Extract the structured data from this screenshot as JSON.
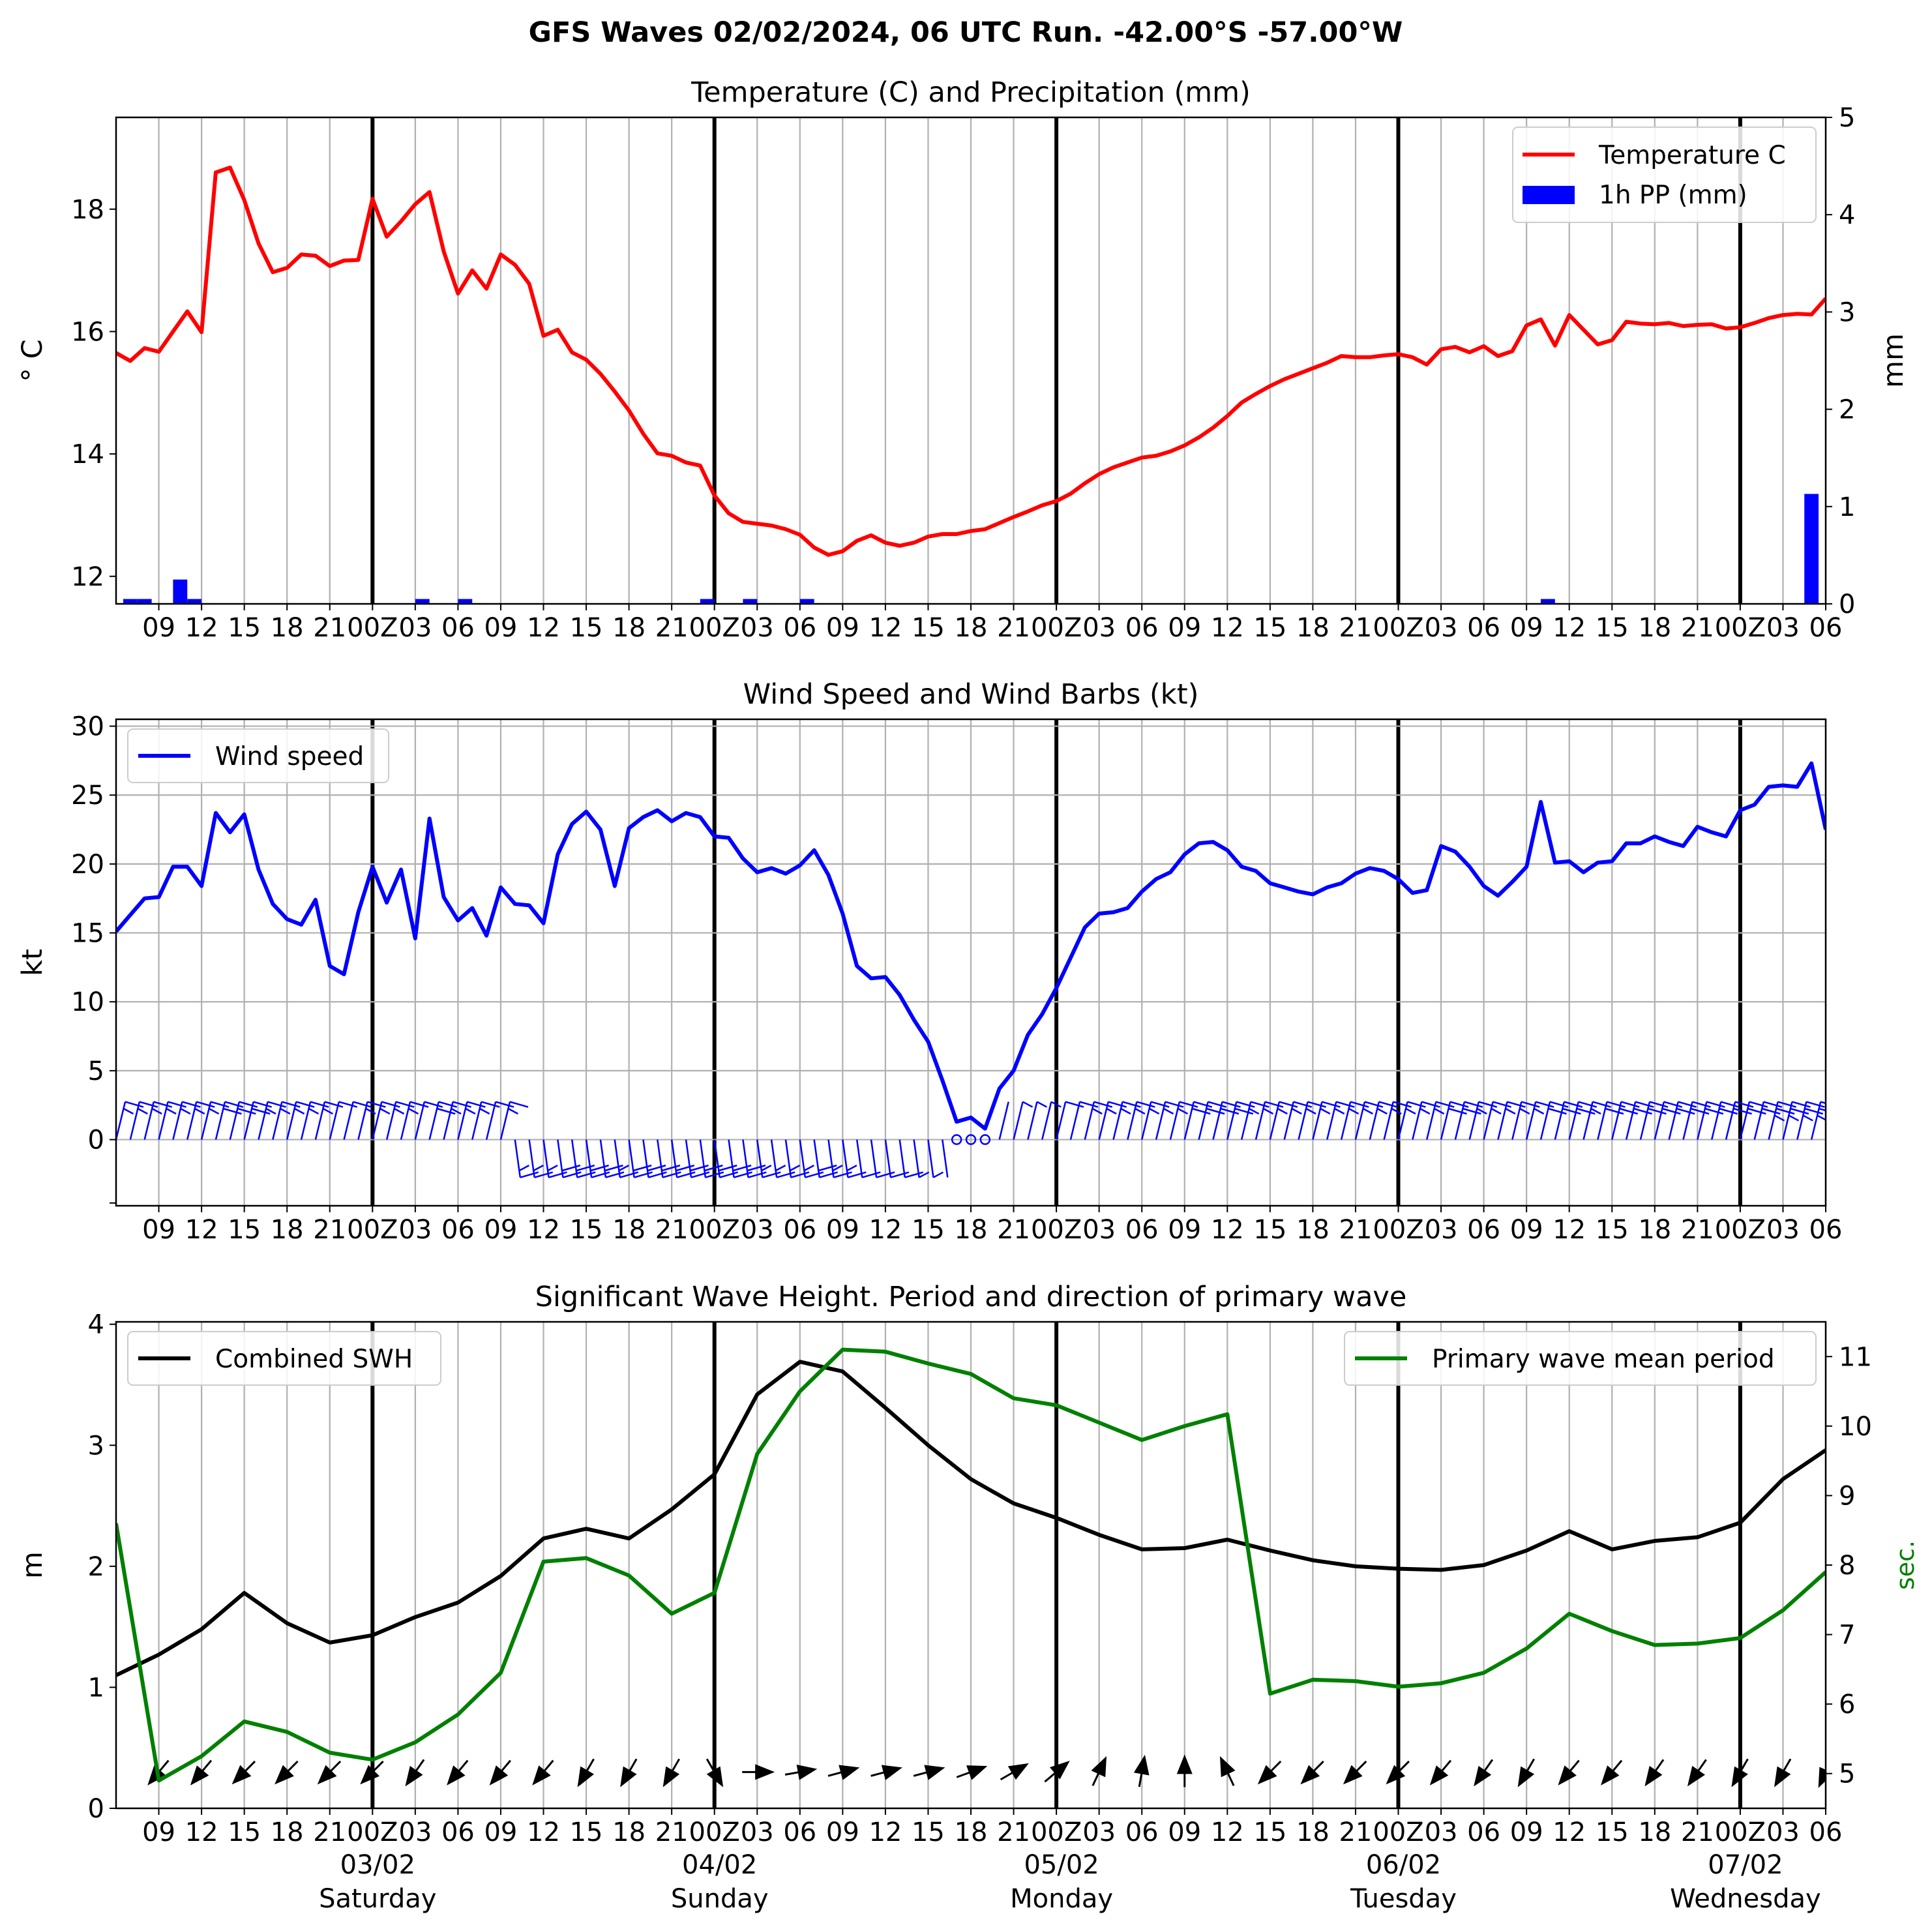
{
  "figure_title": "GFS Waves 02/02/2024, 06 UTC Run. -42.00°S -57.00°W",
  "colors": {
    "temperature": "#ff0000",
    "precipitation": "#0000ff",
    "wind": "#0000ff",
    "swh": "#000000",
    "period": "#008000",
    "wave_arrow": "#000000",
    "grid": "#b0b0b0"
  },
  "hour_ticks": [
    "09",
    "12",
    "15",
    "18",
    "21",
    "00Z",
    "03",
    "06",
    "09",
    "12",
    "15",
    "18",
    "21",
    "00Z",
    "03",
    "06",
    "09",
    "12",
    "15",
    "18",
    "21",
    "00Z",
    "03",
    "06",
    "09",
    "12",
    "15",
    "18",
    "21",
    "00Z",
    "03",
    "06",
    "09",
    "12",
    "15",
    "18",
    "21",
    "00Z",
    "03",
    "06"
  ],
  "day_labels": [
    {
      "date": "03/02",
      "weekday": "Saturday"
    },
    {
      "date": "04/02",
      "weekday": "Sunday"
    },
    {
      "date": "05/02",
      "weekday": "Monday"
    },
    {
      "date": "06/02",
      "weekday": "Tuesday"
    },
    {
      "date": "07/02",
      "weekday": "Wednesday"
    }
  ],
  "chart_data": [
    {
      "type": "line",
      "title": "Temperature (C) and Precipitation (mm)",
      "xlabel": "",
      "ylabel": "° C",
      "y2label": "mm",
      "x_range_hours": [
        0,
        120
      ],
      "ylim": [
        11.55,
        19.5
      ],
      "yticks": [
        12,
        14,
        16,
        18
      ],
      "y2lim": [
        0,
        5
      ],
      "y2ticks": [
        0,
        1,
        2,
        3,
        4,
        5
      ],
      "grid": true,
      "legend_position": "upper right",
      "series": [
        {
          "name": "Temperature C",
          "axis": "left",
          "x": [
            0,
            1,
            2,
            3,
            4,
            5,
            6,
            7,
            8,
            9,
            10,
            11,
            12,
            13,
            14,
            15,
            16,
            17,
            18,
            19,
            20,
            21,
            22,
            23,
            24,
            25,
            26,
            27,
            28,
            29,
            30,
            31,
            32,
            33,
            34,
            35,
            36,
            37,
            38,
            39,
            40,
            41,
            42,
            43,
            44,
            45,
            46,
            47,
            48,
            49,
            50,
            51,
            52,
            53,
            54,
            55,
            56,
            57,
            58,
            59,
            60,
            61,
            62,
            63,
            64,
            65,
            66,
            67,
            68,
            69,
            70,
            71,
            72,
            73,
            74,
            75,
            76,
            77,
            78,
            79,
            80,
            81,
            82,
            83,
            84,
            85,
            86,
            87,
            88,
            89,
            90,
            91,
            92,
            93,
            94,
            95,
            96,
            97,
            98,
            99,
            100,
            101,
            102,
            103,
            104,
            105,
            106,
            107,
            108,
            109,
            110,
            111,
            112,
            113,
            114,
            115,
            116,
            117,
            118,
            119,
            120
          ],
          "values": [
            15.65,
            15.52,
            15.73,
            15.67,
            16.0,
            16.33,
            15.99,
            18.6,
            18.68,
            18.15,
            17.44,
            16.97,
            17.04,
            17.26,
            17.24,
            17.07,
            17.16,
            17.17,
            18.17,
            17.55,
            17.8,
            18.08,
            18.28,
            17.31,
            16.62,
            17.0,
            16.7,
            17.26,
            17.09,
            16.78,
            15.93,
            16.03,
            15.66,
            15.54,
            15.31,
            15.02,
            14.71,
            14.33,
            14.01,
            13.97,
            13.86,
            13.81,
            13.32,
            13.03,
            12.89,
            12.86,
            12.83,
            12.77,
            12.68,
            12.47,
            12.35,
            12.41,
            12.58,
            12.67,
            12.55,
            12.5,
            12.55,
            12.65,
            12.69,
            12.69,
            12.74,
            12.77,
            12.87,
            12.97,
            13.06,
            13.16,
            13.23,
            13.35,
            13.52,
            13.67,
            13.78,
            13.86,
            13.94,
            13.97,
            14.04,
            14.14,
            14.27,
            14.43,
            14.62,
            14.84,
            14.98,
            15.11,
            15.22,
            15.31,
            15.4,
            15.49,
            15.6,
            15.58,
            15.58,
            15.61,
            15.63,
            15.58,
            15.46,
            15.71,
            15.75,
            15.66,
            15.76,
            15.6,
            15.68,
            16.1,
            16.2,
            15.77,
            16.27,
            16.03,
            15.79,
            15.86,
            16.16,
            16.13,
            16.12,
            16.14,
            16.09,
            16.11,
            16.12,
            16.05,
            16.07,
            16.14,
            16.22,
            16.27,
            16.29,
            16.28,
            16.54
          ]
        },
        {
          "name": "1h PP (mm)",
          "axis": "right",
          "type": "bar",
          "x": [
            1.0,
            2.0,
            4.5,
            5.5,
            21.5,
            24.5,
            41.5,
            44.5,
            48.5,
            100.5,
            119.0
          ],
          "values": [
            0.05,
            0.05,
            0.25,
            0.05,
            0.05,
            0.05,
            0.05,
            0.05,
            0.05,
            0.05,
            1.13
          ]
        }
      ]
    },
    {
      "type": "line",
      "title": "Wind Speed and Wind Barbs (kt)",
      "xlabel": "",
      "ylabel": "kt",
      "x_range_hours": [
        0,
        120
      ],
      "ylim": [
        -4.8,
        30.5
      ],
      "yticks": [
        0,
        5,
        10,
        15,
        20,
        25,
        30
      ],
      "grid": true,
      "legend_position": "upper left",
      "series": [
        {
          "name": "Wind speed",
          "x": [
            0,
            1,
            2,
            3,
            4,
            5,
            6,
            7,
            8,
            9,
            10,
            11,
            12,
            13,
            14,
            15,
            16,
            17,
            18,
            19,
            20,
            21,
            22,
            23,
            24,
            25,
            26,
            27,
            28,
            29,
            30,
            31,
            32,
            33,
            34,
            35,
            36,
            37,
            38,
            39,
            40,
            41,
            42,
            43,
            44,
            45,
            46,
            47,
            48,
            49,
            50,
            51,
            52,
            53,
            54,
            55,
            56,
            57,
            58,
            59,
            60,
            61,
            62,
            63,
            64,
            65,
            66,
            67,
            68,
            69,
            70,
            71,
            72,
            73,
            74,
            75,
            76,
            77,
            78,
            79,
            80,
            81,
            82,
            83,
            84,
            85,
            86,
            87,
            88,
            89,
            90,
            91,
            92,
            93,
            94,
            95,
            96,
            97,
            98,
            99,
            100,
            101,
            102,
            103,
            104,
            105,
            106,
            107,
            108,
            109,
            110,
            111,
            112,
            113,
            114,
            115,
            116,
            117,
            118,
            119,
            120
          ],
          "values": [
            15.1,
            16.3,
            17.5,
            17.6,
            19.8,
            19.8,
            18.4,
            23.7,
            22.3,
            23.6,
            19.6,
            17.1,
            16.0,
            15.6,
            17.4,
            12.6,
            12.0,
            16.5,
            19.8,
            17.2,
            19.6,
            14.6,
            23.3,
            17.6,
            15.9,
            16.8,
            14.8,
            18.3,
            17.1,
            17.0,
            15.7,
            20.7,
            22.9,
            23.8,
            22.5,
            18.4,
            22.6,
            23.4,
            23.9,
            23.1,
            23.7,
            23.4,
            22.0,
            21.9,
            20.4,
            19.4,
            19.7,
            19.3,
            19.9,
            21.0,
            19.2,
            16.4,
            12.6,
            11.7,
            11.8,
            10.5,
            8.7,
            7.1,
            4.3,
            1.3,
            1.6,
            0.8,
            3.7,
            5.0,
            7.6,
            9.1,
            11.0,
            13.2,
            15.4,
            16.4,
            16.5,
            16.8,
            18.0,
            18.9,
            19.4,
            20.7,
            21.5,
            21.6,
            21.0,
            19.8,
            19.5,
            18.6,
            18.3,
            18.0,
            17.8,
            18.3,
            18.6,
            19.3,
            19.7,
            19.5,
            18.9,
            17.9,
            18.1,
            21.3,
            20.9,
            19.8,
            18.4,
            17.7,
            18.7,
            19.8,
            24.5,
            20.1,
            20.2,
            19.4,
            20.1,
            20.2,
            21.5,
            21.5,
            22.0,
            21.6,
            21.3,
            22.7,
            22.3,
            22.0,
            23.9,
            24.3,
            25.6,
            25.7,
            25.6,
            27.3,
            22.5
          ]
        }
      ]
    },
    {
      "type": "line",
      "title": "Significant Wave Height. Period and direction of primary wave",
      "xlabel": "",
      "ylabel": "m",
      "y2label": "sec.",
      "x_range_hours": [
        0,
        120
      ],
      "ylim": [
        0,
        4.02
      ],
      "yticks": [
        0,
        1,
        2,
        3,
        4
      ],
      "y2lim": [
        4.5,
        11.5
      ],
      "y2ticks": [
        5,
        6,
        7,
        8,
        9,
        10,
        11
      ],
      "grid": true,
      "legend_positions": [
        "upper left",
        "upper right"
      ],
      "series": [
        {
          "name": "Combined SWH",
          "axis": "left",
          "x": [
            0,
            3,
            6,
            9,
            12,
            15,
            18,
            21,
            24,
            27,
            30,
            33,
            36,
            39,
            42,
            45,
            48,
            51,
            54,
            57,
            60,
            63,
            66,
            69,
            72,
            75,
            78,
            81,
            84,
            87,
            90,
            93,
            96,
            99,
            102,
            105,
            108,
            111,
            114,
            117,
            120
          ],
          "values": [
            1.1,
            1.27,
            1.48,
            1.78,
            1.53,
            1.37,
            1.43,
            1.58,
            1.7,
            1.92,
            2.23,
            2.31,
            2.23,
            2.47,
            2.76,
            3.42,
            3.69,
            3.61,
            3.31,
            3.0,
            2.72,
            2.52,
            2.4,
            2.26,
            2.14,
            2.15,
            2.22,
            2.13,
            2.05,
            2.0,
            1.98,
            1.97,
            2.01,
            2.13,
            2.29,
            2.14,
            2.21,
            2.24,
            2.36,
            2.72,
            2.96
          ]
        },
        {
          "name": "Primary wave mean period",
          "axis": "right",
          "x": [
            0,
            3,
            6,
            9,
            12,
            15,
            18,
            21,
            24,
            27,
            30,
            33,
            36,
            39,
            42,
            45,
            48,
            51,
            54,
            57,
            60,
            63,
            66,
            69,
            72,
            75,
            78,
            81,
            84,
            87,
            90,
            93,
            96,
            99,
            102,
            105,
            108,
            111,
            114,
            117,
            120
          ],
          "values": [
            8.6,
            4.9,
            5.25,
            5.75,
            5.6,
            5.3,
            5.2,
            5.45,
            5.85,
            6.45,
            8.05,
            8.1,
            7.85,
            7.3,
            7.6,
            9.6,
            10.5,
            11.1,
            11.07,
            10.9,
            10.75,
            10.4,
            10.3,
            10.05,
            9.8,
            10.0,
            10.17,
            6.15,
            6.35,
            6.33,
            6.25,
            6.3,
            6.45,
            6.8,
            7.3,
            7.05,
            6.85,
            6.87,
            6.95,
            7.35,
            7.9
          ]
        }
      ],
      "direction_arrows": {
        "x": [
          3,
          6,
          9,
          12,
          15,
          18,
          21,
          24,
          27,
          30,
          33,
          36,
          39,
          42,
          45,
          48,
          51,
          54,
          57,
          60,
          63,
          66,
          69,
          72,
          75,
          78,
          81,
          84,
          87,
          90,
          93,
          96,
          99,
          102,
          105,
          108,
          111,
          114,
          117,
          120
        ],
        "to_direction_deg": [
          220,
          220,
          225,
          225,
          225,
          225,
          215,
          220,
          220,
          220,
          210,
          210,
          210,
          150,
          90,
          80,
          75,
          75,
          75,
          70,
          60,
          50,
          25,
          10,
          0,
          335,
          225,
          225,
          225,
          225,
          220,
          215,
          210,
          220,
          220,
          215,
          215,
          210,
          210,
          205
        ]
      }
    }
  ]
}
